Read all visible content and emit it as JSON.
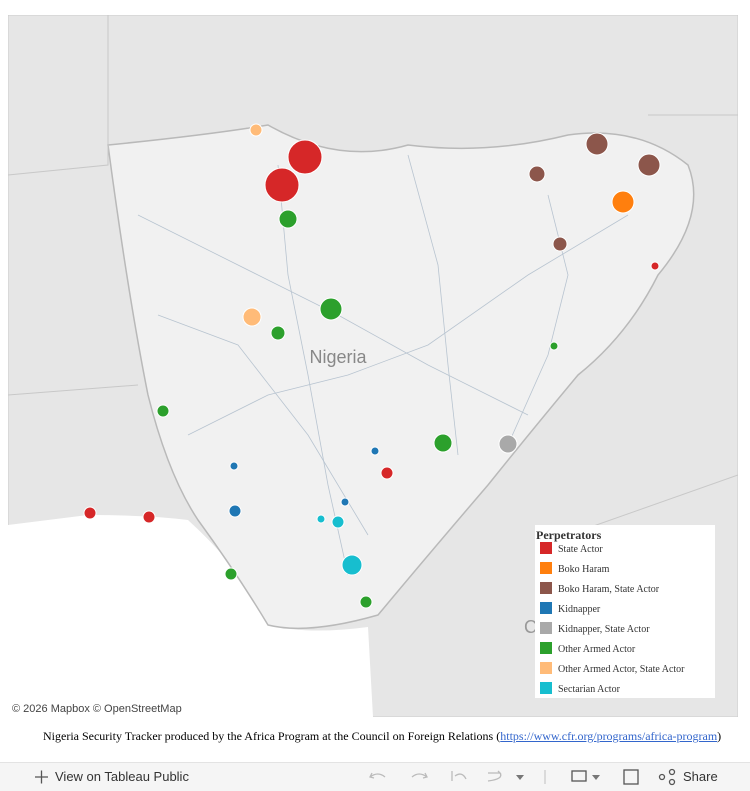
{
  "map": {
    "country_label": "Nigeria",
    "partial_label": "C",
    "attribution": "© 2026 Mapbox © OpenStreetMap"
  },
  "legend": {
    "title": "Perpetrators",
    "items": [
      {
        "name": "State Actor",
        "color": "#d62728"
      },
      {
        "name": "Boko Haram",
        "color": "#ff7f0e"
      },
      {
        "name": "Boko Haram, State Actor",
        "color": "#8c564b"
      },
      {
        "name": "Kidnapper",
        "color": "#1f77b4"
      },
      {
        "name": "Kidnapper, State Actor",
        "color": "#a9a9a9"
      },
      {
        "name": "Other Armed Actor",
        "color": "#2ca02c"
      },
      {
        "name": "Other Armed Actor, State Actor",
        "color": "#ffbb78"
      },
      {
        "name": "Sectarian Actor",
        "color": "#17becf"
      }
    ]
  },
  "footer": {
    "text_before": "Nigeria Security Tracker produced by the Africa Program at the Council on Foreign Relations (",
    "link": "https://www.cfr.org/programs/africa-program",
    "text_after": ")"
  },
  "toolbar": {
    "view": "View on Tableau Public",
    "share": "Share"
  }
}
